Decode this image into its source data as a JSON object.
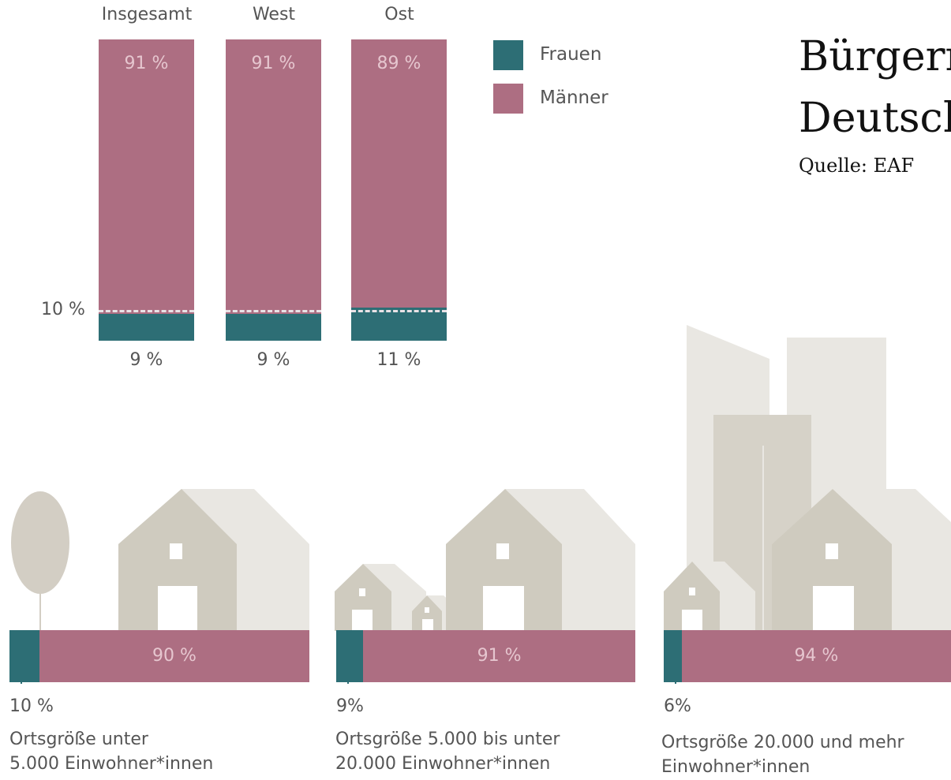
{
  "title_line1": "Bürgerm",
  "title_line2": "Deutsch",
  "source": "Quelle: EAF",
  "legend": {
    "frauen": "Frauen",
    "maenner": "Männer",
    "colors": {
      "frauen": "#2d6e75",
      "maenner": "#ad6e82"
    }
  },
  "chart_data": [
    {
      "type": "bar",
      "stacked": true,
      "categories": [
        "Insgesamt",
        "West",
        "Ost"
      ],
      "series": [
        {
          "name": "Frauen",
          "values": [
            9,
            9,
            11
          ],
          "labels": [
            "9 %",
            "9 %",
            "11 %"
          ]
        },
        {
          "name": "Männer",
          "values": [
            91,
            91,
            89
          ],
          "labels": [
            "91 %",
            "91 %",
            "89 %"
          ]
        }
      ],
      "reference_line": {
        "value": 10,
        "label": "10 %"
      },
      "ylim": [
        0,
        100
      ]
    },
    {
      "type": "bar",
      "orientation": "horizontal",
      "stacked": true,
      "categories": [
        "Ortsgröße unter 5.000 Einwohner*innen",
        "Ortsgröße 5.000 bis unter 20.000 Einwohner*innen",
        "Ortsgröße 20.000 und mehr Einwohner*innen"
      ],
      "series": [
        {
          "name": "Frauen",
          "values": [
            10,
            9,
            6
          ],
          "labels": [
            "10 %",
            "9%",
            "6%"
          ]
        },
        {
          "name": "Männer",
          "values": [
            90,
            91,
            94
          ],
          "labels": [
            "90 %",
            "91 %",
            "94 %"
          ]
        }
      ]
    }
  ],
  "size_groups": [
    {
      "line1": "Ortsgröße unter",
      "line2": "5.000 Einwohner*innen"
    },
    {
      "line1": "Ortsgröße 5.000 bis unter",
      "line2": "20.000 Einwohner*innen"
    },
    {
      "line1": "Ortsgröße 20.000 und mehr",
      "line2": "Einwohner*innen"
    }
  ]
}
